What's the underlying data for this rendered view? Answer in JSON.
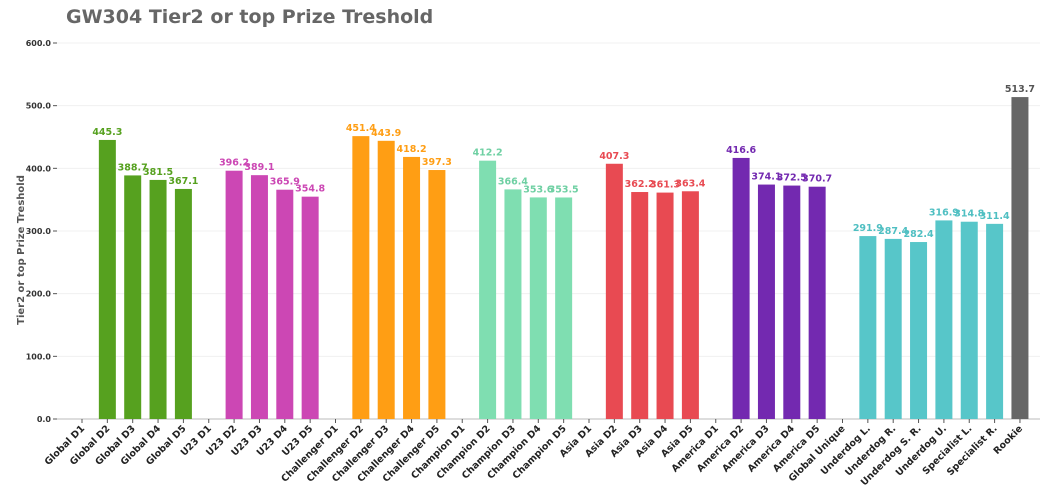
{
  "title": "GW304 Tier2 or top Prize Treshold",
  "chart_data": {
    "type": "bar",
    "title": "GW304 Tier2 or top Prize Treshold",
    "xlabel": "",
    "ylabel": "Tier2 or top Prize Treshold",
    "ylim": [
      0,
      600
    ],
    "yticks": [
      "0.0",
      "100.0",
      "200.0",
      "300.0",
      "400.0",
      "500.0",
      "600.0"
    ],
    "grid": true,
    "categories": [
      "Global D1",
      "Global D2",
      "Global D3",
      "Global D4",
      "Global D5",
      "U23 D1",
      "U23 D2",
      "U23 D3",
      "U23 D4",
      "U23 D5",
      "Challenger D1",
      "Challenger D2",
      "Challenger D3",
      "Challenger D4",
      "Challenger D5",
      "Champion D1",
      "Champion D2",
      "Champion D3",
      "Champion D4",
      "Champion D5",
      "Asia D1",
      "Asia D2",
      "Asia D3",
      "Asia D4",
      "Asia D5",
      "America D1",
      "America D2",
      "America D3",
      "America D4",
      "America D5",
      "Global Unique",
      "Underdog L.",
      "Underdog R.",
      "Underdog S. R.",
      "Underdog U.",
      "Specialist L.",
      "Specialist R.",
      "Rookie"
    ],
    "values": [
      null,
      445.3,
      388.7,
      381.5,
      367.1,
      null,
      396.2,
      389.1,
      365.9,
      354.8,
      null,
      451.4,
      443.9,
      418.2,
      397.3,
      null,
      412.2,
      366.4,
      353.6,
      353.5,
      null,
      407.3,
      362.2,
      361.3,
      363.4,
      null,
      416.6,
      374.1,
      372.5,
      370.7,
      null,
      291.9,
      287.4,
      282.4,
      316.9,
      314.8,
      311.4,
      513.7
    ],
    "labels": [
      "",
      "445.3",
      "388.7",
      "381.5",
      "367.1",
      "",
      "396.2",
      "389.1",
      "365.9",
      "354.8",
      "",
      "451.4",
      "443.9",
      "418.2",
      "397.3",
      "",
      "412.2",
      "366.4",
      "353.6",
      "353.5",
      "",
      "407.3",
      "362.2",
      "361.3",
      "363.4",
      "",
      "416.6",
      "374.1",
      "372.5",
      "370.7",
      "",
      "291.9",
      "287.4",
      "282.4",
      "316.9",
      "314.8",
      "311.4",
      "513.7"
    ],
    "colors": [
      "#56a11f",
      "#56a11f",
      "#56a11f",
      "#56a11f",
      "#56a11f",
      "#cc47b4",
      "#cc47b4",
      "#cc47b4",
      "#cc47b4",
      "#cc47b4",
      "#ff9e14",
      "#ff9e14",
      "#ff9e14",
      "#ff9e14",
      "#ff9e14",
      "#7fdeb1",
      "#7fdeb1",
      "#7fdeb1",
      "#7fdeb1",
      "#7fdeb1",
      "#e84a52",
      "#e84a52",
      "#e84a52",
      "#e84a52",
      "#e84a52",
      "#7329b0",
      "#7329b0",
      "#7329b0",
      "#7329b0",
      "#7329b0",
      "#57c6c9",
      "#57c6c9",
      "#57c6c9",
      "#57c6c9",
      "#57c6c9",
      "#57c6c9",
      "#57c6c9",
      "#666666"
    ],
    "label_colors": [
      "#56a11f",
      "#56a11f",
      "#56a11f",
      "#56a11f",
      "#56a11f",
      "#cc47b4",
      "#cc47b4",
      "#cc47b4",
      "#cc47b4",
      "#cc47b4",
      "#ff9e14",
      "#ff9e14",
      "#ff9e14",
      "#ff9e14",
      "#ff9e14",
      "#6fd0a3",
      "#6fd0a3",
      "#6fd0a3",
      "#6fd0a3",
      "#6fd0a3",
      "#e84a52",
      "#e84a52",
      "#e84a52",
      "#e84a52",
      "#e84a52",
      "#7329b0",
      "#7329b0",
      "#7329b0",
      "#7329b0",
      "#7329b0",
      "#4fbfc2",
      "#4fbfc2",
      "#4fbfc2",
      "#4fbfc2",
      "#4fbfc2",
      "#4fbfc2",
      "#4fbfc2",
      "#555555"
    ]
  }
}
